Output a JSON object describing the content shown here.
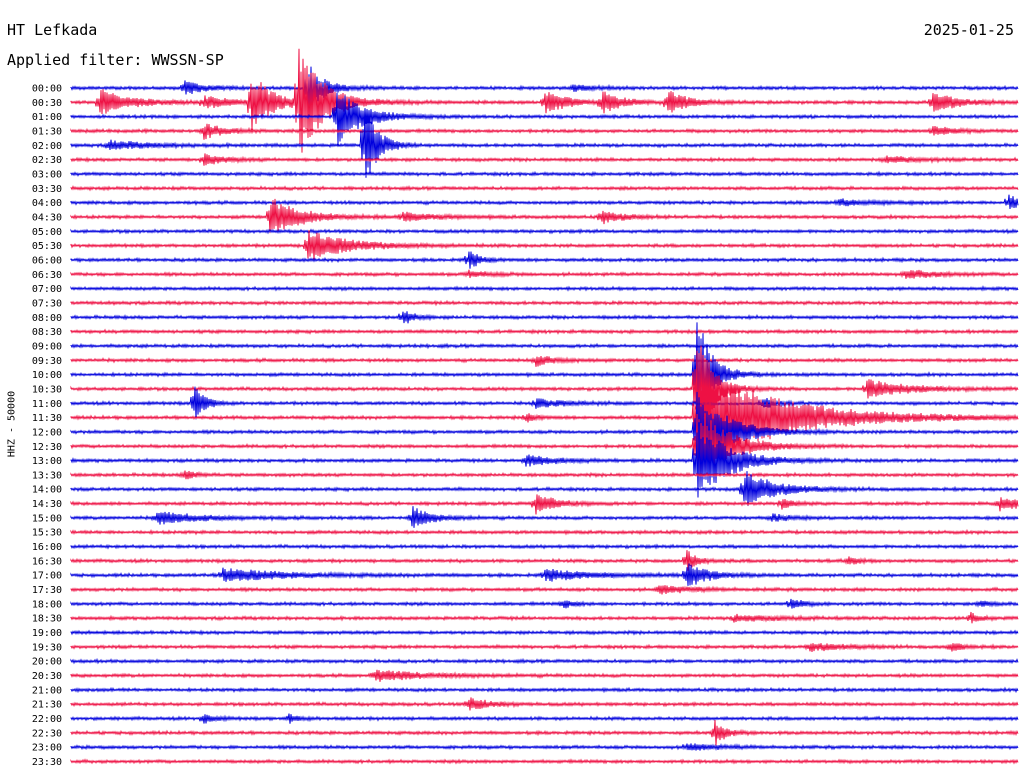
{
  "header": {
    "station": "HT Lefkada",
    "date": "2025-01-25",
    "filter": "Applied filter: WWSSN-SP"
  },
  "chart_data": {
    "type": "line",
    "title": "HT Lefkada",
    "ylabel": "HHZ - 50000",
    "colors": {
      "even_trace": "#0000dd",
      "odd_trace": "#ee1144"
    },
    "rows": [
      "00:00",
      "00:30",
      "01:00",
      "01:30",
      "02:00",
      "02:30",
      "03:00",
      "03:30",
      "04:00",
      "04:30",
      "05:00",
      "05:30",
      "06:00",
      "06:30",
      "07:00",
      "07:30",
      "08:00",
      "08:30",
      "09:00",
      "09:30",
      "10:00",
      "10:30",
      "11:00",
      "11:30",
      "12:00",
      "12:30",
      "13:00",
      "13:30",
      "14:00",
      "14:30",
      "15:00",
      "15:30",
      "16:00",
      "16:30",
      "17:00",
      "17:30",
      "18:00",
      "18:30",
      "19:00",
      "19:30",
      "20:00",
      "20:30",
      "21:00",
      "21:30",
      "22:00",
      "22:30",
      "23:00",
      "23:30"
    ],
    "events": [
      {
        "row": 0,
        "t": 0.12,
        "amp": 0.6,
        "dur": 0.02
      },
      {
        "row": 0,
        "t": 0.25,
        "amp": 2.5,
        "dur": 0.015
      },
      {
        "row": 0,
        "t": 0.53,
        "amp": 0.3,
        "dur": 0.02
      },
      {
        "row": 1,
        "t": 0.03,
        "amp": 1.2,
        "dur": 0.03
      },
      {
        "row": 1,
        "t": 0.14,
        "amp": 0.5,
        "dur": 0.03
      },
      {
        "row": 1,
        "t": 0.19,
        "amp": 2.8,
        "dur": 0.02
      },
      {
        "row": 1,
        "t": 0.24,
        "amp": 5.0,
        "dur": 0.025
      },
      {
        "row": 1,
        "t": 0.5,
        "amp": 1.2,
        "dur": 0.02
      },
      {
        "row": 1,
        "t": 0.56,
        "amp": 1.0,
        "dur": 0.02
      },
      {
        "row": 1,
        "t": 0.63,
        "amp": 1.1,
        "dur": 0.02
      },
      {
        "row": 1,
        "t": 0.91,
        "amp": 0.9,
        "dur": 0.025
      },
      {
        "row": 2,
        "t": 0.28,
        "amp": 2.8,
        "dur": 0.025
      },
      {
        "row": 3,
        "t": 0.14,
        "amp": 0.7,
        "dur": 0.02
      },
      {
        "row": 3,
        "t": 0.91,
        "amp": 0.4,
        "dur": 0.02
      },
      {
        "row": 4,
        "t": 0.04,
        "amp": 0.4,
        "dur": 0.04
      },
      {
        "row": 4,
        "t": 0.31,
        "amp": 4.5,
        "dur": 0.012
      },
      {
        "row": 5,
        "t": 0.14,
        "amp": 0.5,
        "dur": 0.02
      },
      {
        "row": 5,
        "t": 0.86,
        "amp": 0.3,
        "dur": 0.03
      },
      {
        "row": 8,
        "t": 0.81,
        "amp": 0.3,
        "dur": 0.03
      },
      {
        "row": 8,
        "t": 0.99,
        "amp": 0.8,
        "dur": 0.01
      },
      {
        "row": 9,
        "t": 0.21,
        "amp": 1.8,
        "dur": 0.03
      },
      {
        "row": 9,
        "t": 0.35,
        "amp": 0.4,
        "dur": 0.03
      },
      {
        "row": 9,
        "t": 0.56,
        "amp": 0.6,
        "dur": 0.02
      },
      {
        "row": 11,
        "t": 0.25,
        "amp": 1.4,
        "dur": 0.04
      },
      {
        "row": 12,
        "t": 0.42,
        "amp": 0.9,
        "dur": 0.01
      },
      {
        "row": 13,
        "t": 0.42,
        "amp": 0.3,
        "dur": 0.02
      },
      {
        "row": 13,
        "t": 0.88,
        "amp": 0.4,
        "dur": 0.03
      },
      {
        "row": 16,
        "t": 0.35,
        "amp": 0.8,
        "dur": 0.01
      },
      {
        "row": 19,
        "t": 0.49,
        "amp": 0.5,
        "dur": 0.02
      },
      {
        "row": 20,
        "t": 0.66,
        "amp": 6.0,
        "dur": 0.015
      },
      {
        "row": 21,
        "t": 0.66,
        "amp": 6.0,
        "dur": 0.015
      },
      {
        "row": 21,
        "t": 0.84,
        "amp": 0.9,
        "dur": 0.04
      },
      {
        "row": 22,
        "t": 0.13,
        "amp": 1.9,
        "dur": 0.01
      },
      {
        "row": 22,
        "t": 0.49,
        "amp": 0.4,
        "dur": 0.03
      },
      {
        "row": 22,
        "t": 0.73,
        "amp": 0.6,
        "dur": 0.01
      },
      {
        "row": 23,
        "t": 0.66,
        "amp": 5.0,
        "dur": 0.08
      },
      {
        "row": 23,
        "t": 0.48,
        "amp": 0.4,
        "dur": 0.01
      },
      {
        "row": 24,
        "t": 0.66,
        "amp": 4.0,
        "dur": 0.03
      },
      {
        "row": 25,
        "t": 0.66,
        "amp": 4.0,
        "dur": 0.03
      },
      {
        "row": 26,
        "t": 0.66,
        "amp": 4.0,
        "dur": 0.03
      },
      {
        "row": 26,
        "t": 0.48,
        "amp": 0.5,
        "dur": 0.03
      },
      {
        "row": 27,
        "t": 0.12,
        "amp": 0.5,
        "dur": 0.01
      },
      {
        "row": 28,
        "t": 0.71,
        "amp": 1.8,
        "dur": 0.03
      },
      {
        "row": 29,
        "t": 0.49,
        "amp": 1.0,
        "dur": 0.02
      },
      {
        "row": 29,
        "t": 0.75,
        "amp": 0.6,
        "dur": 0.01
      },
      {
        "row": 29,
        "t": 0.98,
        "amp": 0.6,
        "dur": 0.03
      },
      {
        "row": 30,
        "t": 0.09,
        "amp": 0.6,
        "dur": 0.04
      },
      {
        "row": 30,
        "t": 0.36,
        "amp": 1.0,
        "dur": 0.02
      },
      {
        "row": 30,
        "t": 0.74,
        "amp": 0.3,
        "dur": 0.02
      },
      {
        "row": 33,
        "t": 0.65,
        "amp": 1.0,
        "dur": 0.01
      },
      {
        "row": 33,
        "t": 0.82,
        "amp": 0.4,
        "dur": 0.01
      },
      {
        "row": 34,
        "t": 0.16,
        "amp": 0.6,
        "dur": 0.06
      },
      {
        "row": 34,
        "t": 0.5,
        "amp": 0.5,
        "dur": 0.05
      },
      {
        "row": 34,
        "t": 0.65,
        "amp": 1.2,
        "dur": 0.02
      },
      {
        "row": 35,
        "t": 0.62,
        "amp": 0.4,
        "dur": 0.03
      },
      {
        "row": 36,
        "t": 0.52,
        "amp": 0.4,
        "dur": 0.01
      },
      {
        "row": 36,
        "t": 0.76,
        "amp": 0.6,
        "dur": 0.01
      },
      {
        "row": 36,
        "t": 0.96,
        "amp": 0.3,
        "dur": 0.01
      },
      {
        "row": 37,
        "t": 0.7,
        "amp": 0.3,
        "dur": 0.04
      },
      {
        "row": 37,
        "t": 0.95,
        "amp": 0.5,
        "dur": 0.01
      },
      {
        "row": 39,
        "t": 0.78,
        "amp": 0.4,
        "dur": 0.03
      },
      {
        "row": 39,
        "t": 0.93,
        "amp": 0.5,
        "dur": 0.01
      },
      {
        "row": 41,
        "t": 0.32,
        "amp": 0.5,
        "dur": 0.05
      },
      {
        "row": 43,
        "t": 0.42,
        "amp": 0.6,
        "dur": 0.02
      },
      {
        "row": 44,
        "t": 0.14,
        "amp": 0.5,
        "dur": 0.01
      },
      {
        "row": 44,
        "t": 0.23,
        "amp": 0.4,
        "dur": 0.01
      },
      {
        "row": 45,
        "t": 0.68,
        "amp": 1.2,
        "dur": 0.01
      },
      {
        "row": 46,
        "t": 0.65,
        "amp": 0.3,
        "dur": 0.03
      }
    ]
  }
}
